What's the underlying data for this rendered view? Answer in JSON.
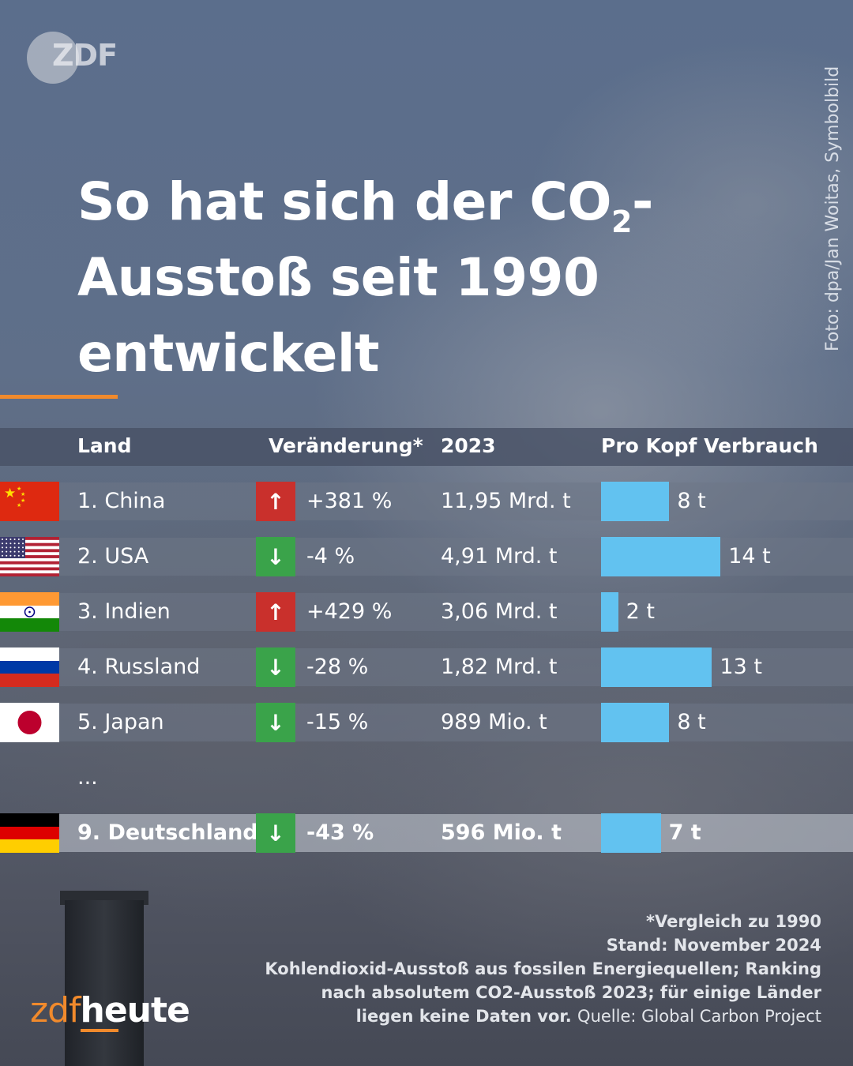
{
  "logo": {
    "text": "ZDF"
  },
  "credit": "Foto: dpa/Jan Woitas, Symbolbild",
  "title": {
    "line1_pre": "So hat sich der CO",
    "sub": "2",
    "line1_post": "-",
    "line2": "Ausstoß seit 1990",
    "line3": "entwickelt"
  },
  "colors": {
    "accent": "#f18a2c",
    "bar": "#62c2f0",
    "up": "#c9302c",
    "down": "#3aa34a"
  },
  "headers": {
    "land": "Land",
    "change": "Veränderung*",
    "year": "2023",
    "per_capita": "Pro Kopf Verbrauch"
  },
  "ellipsis": "...",
  "chart_data": {
    "type": "table",
    "columns": [
      "Land",
      "Veränderung*",
      "2023",
      "Pro Kopf Verbrauch"
    ],
    "rows": [
      {
        "country": "1. China",
        "flag": "china-flag",
        "direction": "up",
        "arrow": "↑",
        "change": "+381 %",
        "emissions": "11,95 Mrd. t",
        "per_capita": 8,
        "per_capita_label": "8 t",
        "highlight": false
      },
      {
        "country": "2. USA",
        "flag": "usa-flag",
        "direction": "down",
        "arrow": "↓",
        "change": "-4 %",
        "emissions": "4,91 Mrd. t",
        "per_capita": 14,
        "per_capita_label": "14 t",
        "highlight": false
      },
      {
        "country": "3. Indien",
        "flag": "india-flag",
        "direction": "up",
        "arrow": "↑",
        "change": "+429 %",
        "emissions": "3,06 Mrd. t",
        "per_capita": 2,
        "per_capita_label": "2 t",
        "highlight": false
      },
      {
        "country": "4. Russland",
        "flag": "russia-flag",
        "direction": "down",
        "arrow": "↓",
        "change": "-28 %",
        "emissions": "1,82 Mrd. t",
        "per_capita": 13,
        "per_capita_label": "13 t",
        "highlight": false
      },
      {
        "country": "5. Japan",
        "flag": "japan-flag",
        "direction": "down",
        "arrow": "↓",
        "change": "-15 %",
        "emissions": "989 Mio. t",
        "per_capita": 8,
        "per_capita_label": "8 t",
        "highlight": false
      },
      {
        "country": "9. Deutschland",
        "flag": "germany-flag",
        "direction": "down",
        "arrow": "↓",
        "change": "-43 %",
        "emissions": "596 Mio. t",
        "per_capita": 7,
        "per_capita_label": "7 t",
        "highlight": true
      }
    ]
  },
  "footer": {
    "line1": "*Vergleich zu 1990",
    "line2": "Stand: November 2024",
    "line3": "Kohlendioxid-Ausstoß aus fossilen Energiequellen; Ranking",
    "line4": "nach absolutem CO2-Ausstoß 2023; für einige Länder",
    "line5": "liegen keine Daten vor.",
    "source": "Quelle: Global Carbon Project"
  },
  "brand": {
    "zdf": "zdf",
    "heute": "heute"
  }
}
